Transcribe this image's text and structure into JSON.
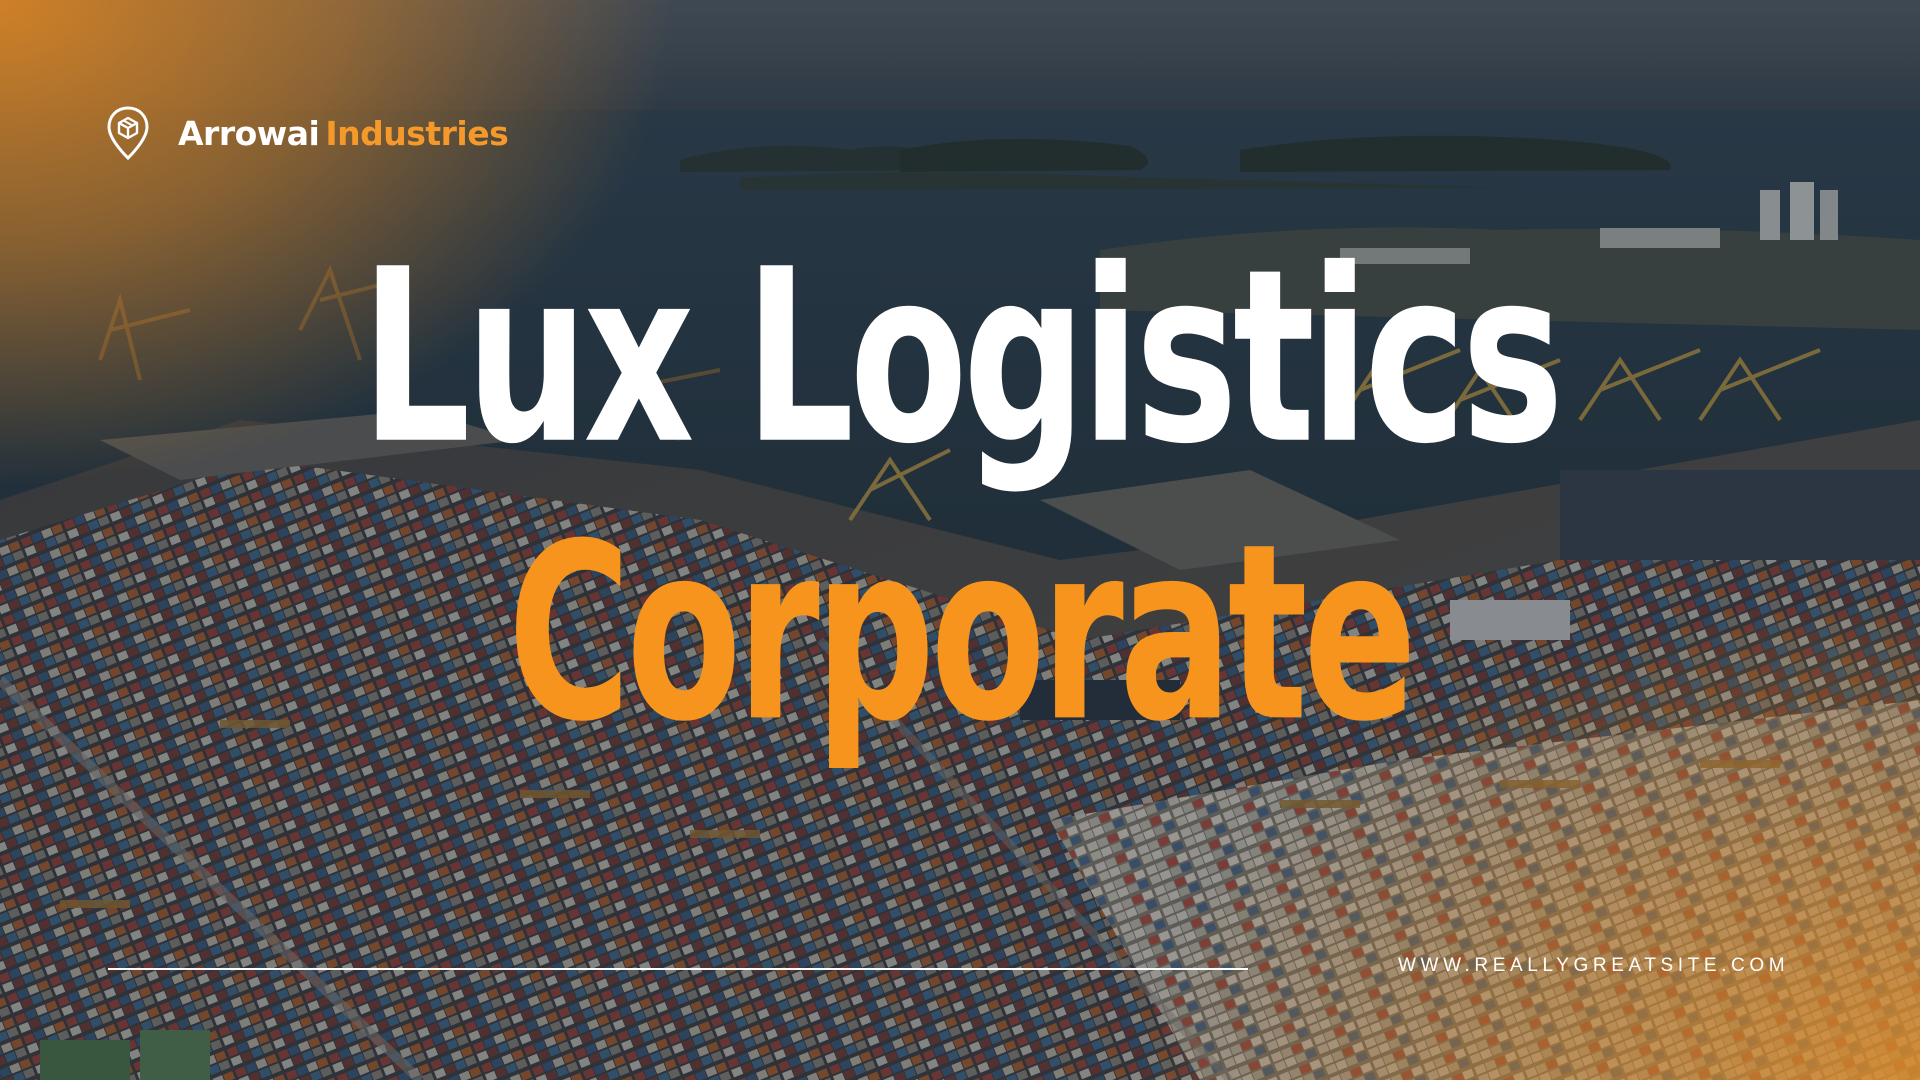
{
  "brand": {
    "icon": "location-pin-box-icon",
    "name_part_1": "Arrowai",
    "name_part_2": "Industries"
  },
  "title": {
    "line_1": "Lux Logistics",
    "line_2": "Corporate"
  },
  "footer": {
    "website": "WWW.REALLYGREATSITE.COM"
  },
  "colors": {
    "accent_orange": "#f7941d",
    "text_white": "#ffffff",
    "sea_dark": "#2b3a48"
  }
}
